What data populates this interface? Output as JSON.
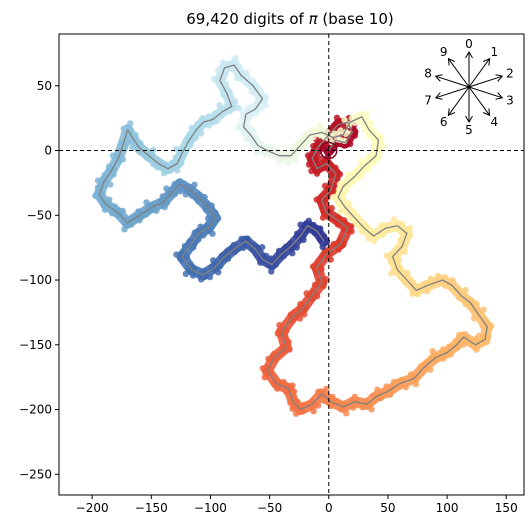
{
  "chart_data": {
    "type": "line",
    "title_prefix": "69,420 digits of ",
    "title_symbol": "π",
    "title_suffix": " (base 10)",
    "xlim": [
      -228,
      165
    ],
    "ylim": [
      -266,
      90
    ],
    "xticks": [
      -200,
      -150,
      -100,
      -50,
      0,
      50,
      100,
      150
    ],
    "yticks": [
      50,
      0,
      -50,
      -100,
      -150,
      -200,
      -250
    ],
    "reference_lines": {
      "x": 0,
      "y": 0,
      "style": "dashed"
    },
    "grid": false,
    "start_marker": {
      "x": 0,
      "y": 0
    },
    "direction_legend": {
      "placement": "top-right",
      "digits": [
        "0",
        "1",
        "2",
        "3",
        "4",
        "5",
        "6",
        "7",
        "8",
        "9"
      ]
    },
    "gradient": [
      "#a50026",
      "#d73027",
      "#f46d43",
      "#fdae61",
      "#fee090",
      "#ffffbf",
      "#e0f3f8",
      "#abd9e9",
      "#74add1",
      "#4575b4",
      "#313695"
    ],
    "walk_color": "#808080",
    "path": [
      [
        0,
        0
      ],
      [
        6,
        8
      ],
      [
        14,
        6
      ],
      [
        20,
        14
      ],
      [
        16,
        22
      ],
      [
        8,
        20
      ],
      [
        2,
        14
      ],
      [
        -8,
        4
      ],
      [
        -14,
        -6
      ],
      [
        -10,
        -14
      ],
      [
        -2,
        -10
      ],
      [
        6,
        -18
      ],
      [
        2,
        -30
      ],
      [
        -6,
        -38
      ],
      [
        -2,
        -48
      ],
      [
        8,
        -54
      ],
      [
        16,
        -60
      ],
      [
        10,
        -72
      ],
      [
        -2,
        -80
      ],
      [
        -10,
        -90
      ],
      [
        -6,
        -102
      ],
      [
        -14,
        -112
      ],
      [
        -22,
        -122
      ],
      [
        -30,
        -128
      ],
      [
        -40,
        -140
      ],
      [
        -36,
        -152
      ],
      [
        -46,
        -160
      ],
      [
        -52,
        -170
      ],
      [
        -44,
        -180
      ],
      [
        -34,
        -184
      ],
      [
        -30,
        -194
      ],
      [
        -24,
        -200
      ],
      [
        -14,
        -196
      ],
      [
        -6,
        -188
      ],
      [
        2,
        -194
      ],
      [
        12,
        -198
      ],
      [
        22,
        -194
      ],
      [
        32,
        -196
      ],
      [
        40,
        -190
      ],
      [
        50,
        -186
      ],
      [
        60,
        -180
      ],
      [
        72,
        -176
      ],
      [
        80,
        -168
      ],
      [
        90,
        -160
      ],
      [
        100,
        -156
      ],
      [
        108,
        -150
      ],
      [
        114,
        -144
      ],
      [
        124,
        -150
      ],
      [
        132,
        -146
      ],
      [
        134,
        -136
      ],
      [
        126,
        -126
      ],
      [
        120,
        -118
      ],
      [
        112,
        -112
      ],
      [
        104,
        -104
      ],
      [
        96,
        -100
      ],
      [
        84,
        -104
      ],
      [
        74,
        -108
      ],
      [
        66,
        -100
      ],
      [
        58,
        -92
      ],
      [
        54,
        -82
      ],
      [
        62,
        -74
      ],
      [
        66,
        -64
      ],
      [
        58,
        -58
      ],
      [
        48,
        -60
      ],
      [
        38,
        -66
      ],
      [
        30,
        -60
      ],
      [
        22,
        -52
      ],
      [
        14,
        -44
      ],
      [
        8,
        -36
      ],
      [
        12,
        -28
      ],
      [
        22,
        -20
      ],
      [
        30,
        -12
      ],
      [
        40,
        -4
      ],
      [
        42,
        8
      ],
      [
        34,
        16
      ],
      [
        28,
        26
      ],
      [
        18,
        22
      ],
      [
        12,
        12
      ],
      [
        4,
        10
      ],
      [
        -6,
        14
      ],
      [
        -16,
        12
      ],
      [
        -24,
        4
      ],
      [
        -32,
        -4
      ],
      [
        -42,
        -4
      ],
      [
        -52,
        0
      ],
      [
        -60,
        4
      ],
      [
        -66,
        12
      ],
      [
        -72,
        18
      ],
      [
        -70,
        28
      ],
      [
        -62,
        32
      ],
      [
        -56,
        40
      ],
      [
        -64,
        50
      ],
      [
        -74,
        58
      ],
      [
        -80,
        66
      ],
      [
        -88,
        64
      ],
      [
        -92,
        54
      ],
      [
        -86,
        44
      ],
      [
        -82,
        34
      ],
      [
        -90,
        30
      ],
      [
        -98,
        24
      ],
      [
        -106,
        22
      ],
      [
        -112,
        16
      ],
      [
        -118,
        8
      ],
      [
        -124,
        -2
      ],
      [
        -128,
        -10
      ],
      [
        -136,
        -14
      ],
      [
        -144,
        -10
      ],
      [
        -152,
        -4
      ],
      [
        -160,
        2
      ],
      [
        -166,
        10
      ],
      [
        -170,
        16
      ],
      [
        -174,
        4
      ],
      [
        -178,
        -6
      ],
      [
        -184,
        -16
      ],
      [
        -190,
        -24
      ],
      [
        -194,
        -34
      ],
      [
        -188,
        -42
      ],
      [
        -178,
        -48
      ],
      [
        -170,
        -56
      ],
      [
        -160,
        -50
      ],
      [
        -150,
        -44
      ],
      [
        -140,
        -40
      ],
      [
        -132,
        -32
      ],
      [
        -126,
        -26
      ],
      [
        -118,
        -30
      ],
      [
        -110,
        -36
      ],
      [
        -102,
        -44
      ],
      [
        -96,
        -52
      ],
      [
        -102,
        -60
      ],
      [
        -110,
        -64
      ],
      [
        -116,
        -72
      ],
      [
        -124,
        -82
      ],
      [
        -116,
        -92
      ],
      [
        -106,
        -96
      ],
      [
        -96,
        -90
      ],
      [
        -88,
        -82
      ],
      [
        -80,
        -76
      ],
      [
        -70,
        -70
      ],
      [
        -62,
        -76
      ],
      [
        -56,
        -84
      ],
      [
        -48,
        -88
      ],
      [
        -40,
        -80
      ],
      [
        -32,
        -74
      ],
      [
        -24,
        -66
      ],
      [
        -18,
        -58
      ],
      [
        -10,
        -62
      ],
      [
        -4,
        -70
      ]
    ]
  }
}
